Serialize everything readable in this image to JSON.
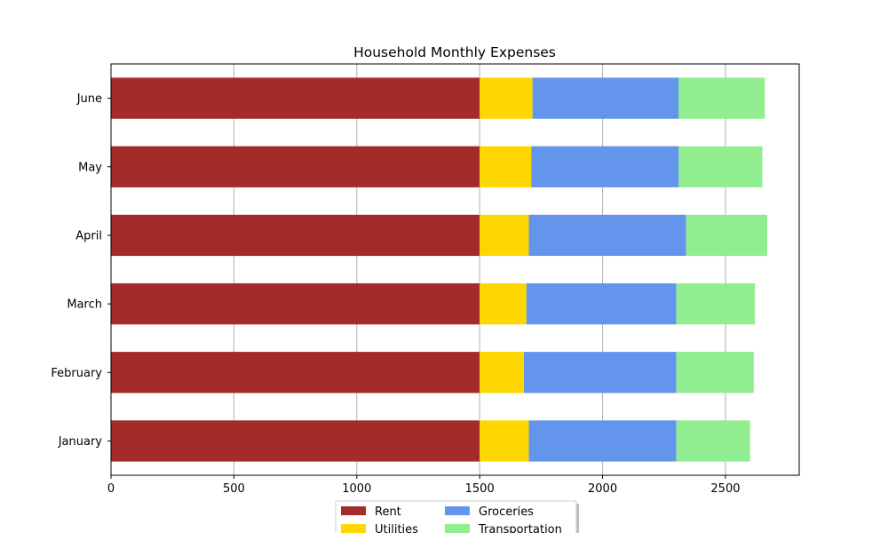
{
  "chart_data": {
    "type": "bar",
    "orientation": "horizontal",
    "stacked": true,
    "title": "Household Monthly Expenses",
    "xlabel": "",
    "ylabel": "",
    "categories": [
      "January",
      "February",
      "March",
      "April",
      "May",
      "June"
    ],
    "series": [
      {
        "name": "Rent",
        "color": "#a52a2a",
        "values": [
          1500,
          1500,
          1500,
          1500,
          1500,
          1500
        ]
      },
      {
        "name": "Utilities",
        "color": "#ffd700",
        "values": [
          200,
          180,
          190,
          200,
          210,
          215
        ]
      },
      {
        "name": "Groceries",
        "color": "#6495ed",
        "values": [
          600,
          620,
          610,
          640,
          600,
          595
        ]
      },
      {
        "name": "Transportation",
        "color": "#90ee90",
        "values": [
          300,
          315,
          320,
          330,
          340,
          350
        ]
      }
    ],
    "xlim": [
      0,
      2800
    ],
    "xticks": [
      0,
      500,
      1000,
      1500,
      2000,
      2500
    ],
    "grid": "vertical",
    "legend": {
      "position": "bottom-center",
      "columns": 2
    }
  }
}
